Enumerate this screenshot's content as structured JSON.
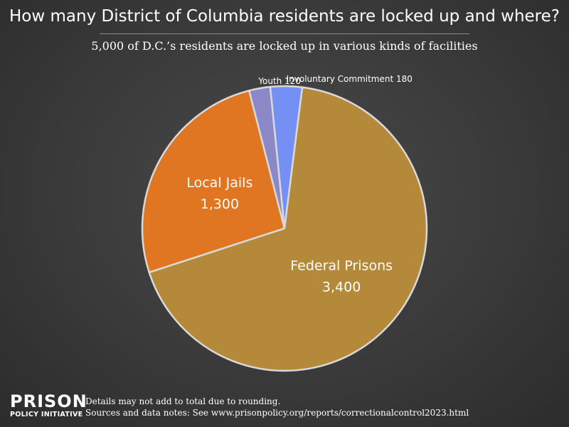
{
  "title": "How many District of Columbia residents are locked up and where?",
  "subtitle": "5,000 of D.C.’s residents are locked up in various kinds of facilities",
  "footer": {
    "logo_main": "PRISON",
    "logo_sub": "POLICY INITIATIVE",
    "note1": "Details may not add to total due to rounding.",
    "note2": "Sources and data notes: See www.prisonpolicy.org/reports/correctionalcontrol2023.html"
  },
  "chart_data": {
    "type": "pie",
    "title": "How many District of Columbia residents are locked up and where?",
    "subtitle": "5,000 of D.C.’s residents are locked up in various kinds of facilities",
    "slices": [
      {
        "label": "Local Jails",
        "value_label": "1,300",
        "value": 1300,
        "color": "#e07522",
        "label_style": "inside"
      },
      {
        "label": "Youth",
        "value_label": "120",
        "value": 120,
        "color": "#8c88c8",
        "label_style": "outside"
      },
      {
        "label": "Involuntary Commitment",
        "value_label": "180",
        "value": 180,
        "color": "#7590f5",
        "label_style": "outside"
      },
      {
        "label": "Federal Prisons",
        "value_label": "3,400",
        "value": 3400,
        "color": "#b5893a",
        "label_style": "inside"
      }
    ],
    "slice_border_color": "#d9d9d9"
  }
}
